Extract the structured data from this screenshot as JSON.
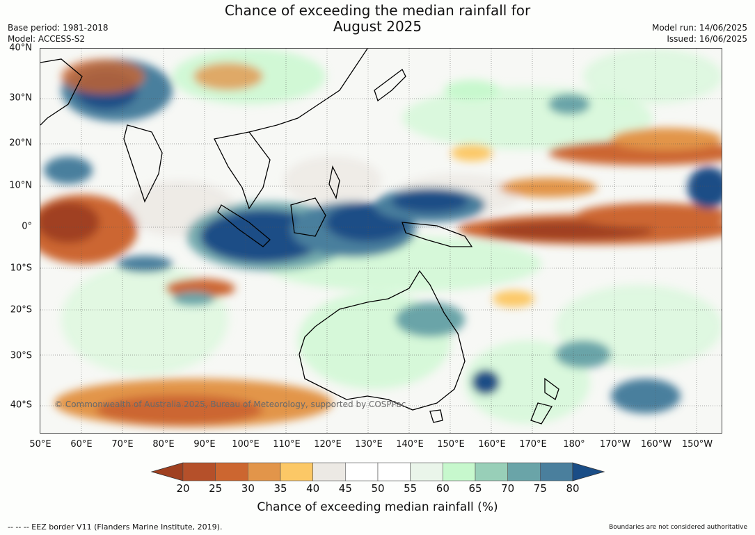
{
  "title_line1": "Chance of exceeding the median rainfall for",
  "title_line2": "August 2025",
  "base_period": "Base period: 1981-2018",
  "model": "Model: ACCESS-S2",
  "model_run": "Model run: 14/06/2025",
  "issued": "Issued: 16/06/2025",
  "copyright": "© Commonwealth of Australia 2025, Bureau of Meteorology, supported by COSPPac",
  "lat_ticks": [
    "40°N",
    "30°N",
    "20°N",
    "10°N",
    "0°",
    "10°S",
    "20°S",
    "30°S",
    "40°S"
  ],
  "lon_ticks": [
    "50°E",
    "60°E",
    "70°E",
    "80°E",
    "90°E",
    "100°E",
    "110°E",
    "120°E",
    "130°E",
    "140°E",
    "150°E",
    "160°E",
    "170°E",
    "180°",
    "170°W",
    "160°W",
    "150°W"
  ],
  "colorbar": {
    "ticks": [
      "20",
      "25",
      "30",
      "35",
      "40",
      "45",
      "50",
      "55",
      "60",
      "65",
      "70",
      "75",
      "80"
    ],
    "colors": [
      "#a04020",
      "#b5502a",
      "#cc6630",
      "#e2954a",
      "#fcc866",
      "#ece9e4",
      "#ffffff",
      "#ffffff",
      "#eaf5ea",
      "#c7f8cd",
      "#98cfb8",
      "#6aa4a8",
      "#4a7f9d",
      "#1a4d86"
    ],
    "label": "Chance of exceeding median rainfall (%)"
  },
  "eez_note": "--  --  -- EEZ border V11 (Flanders Marine Institute, 2019).",
  "boundary_note": "Boundaries are not considered authoritative"
}
